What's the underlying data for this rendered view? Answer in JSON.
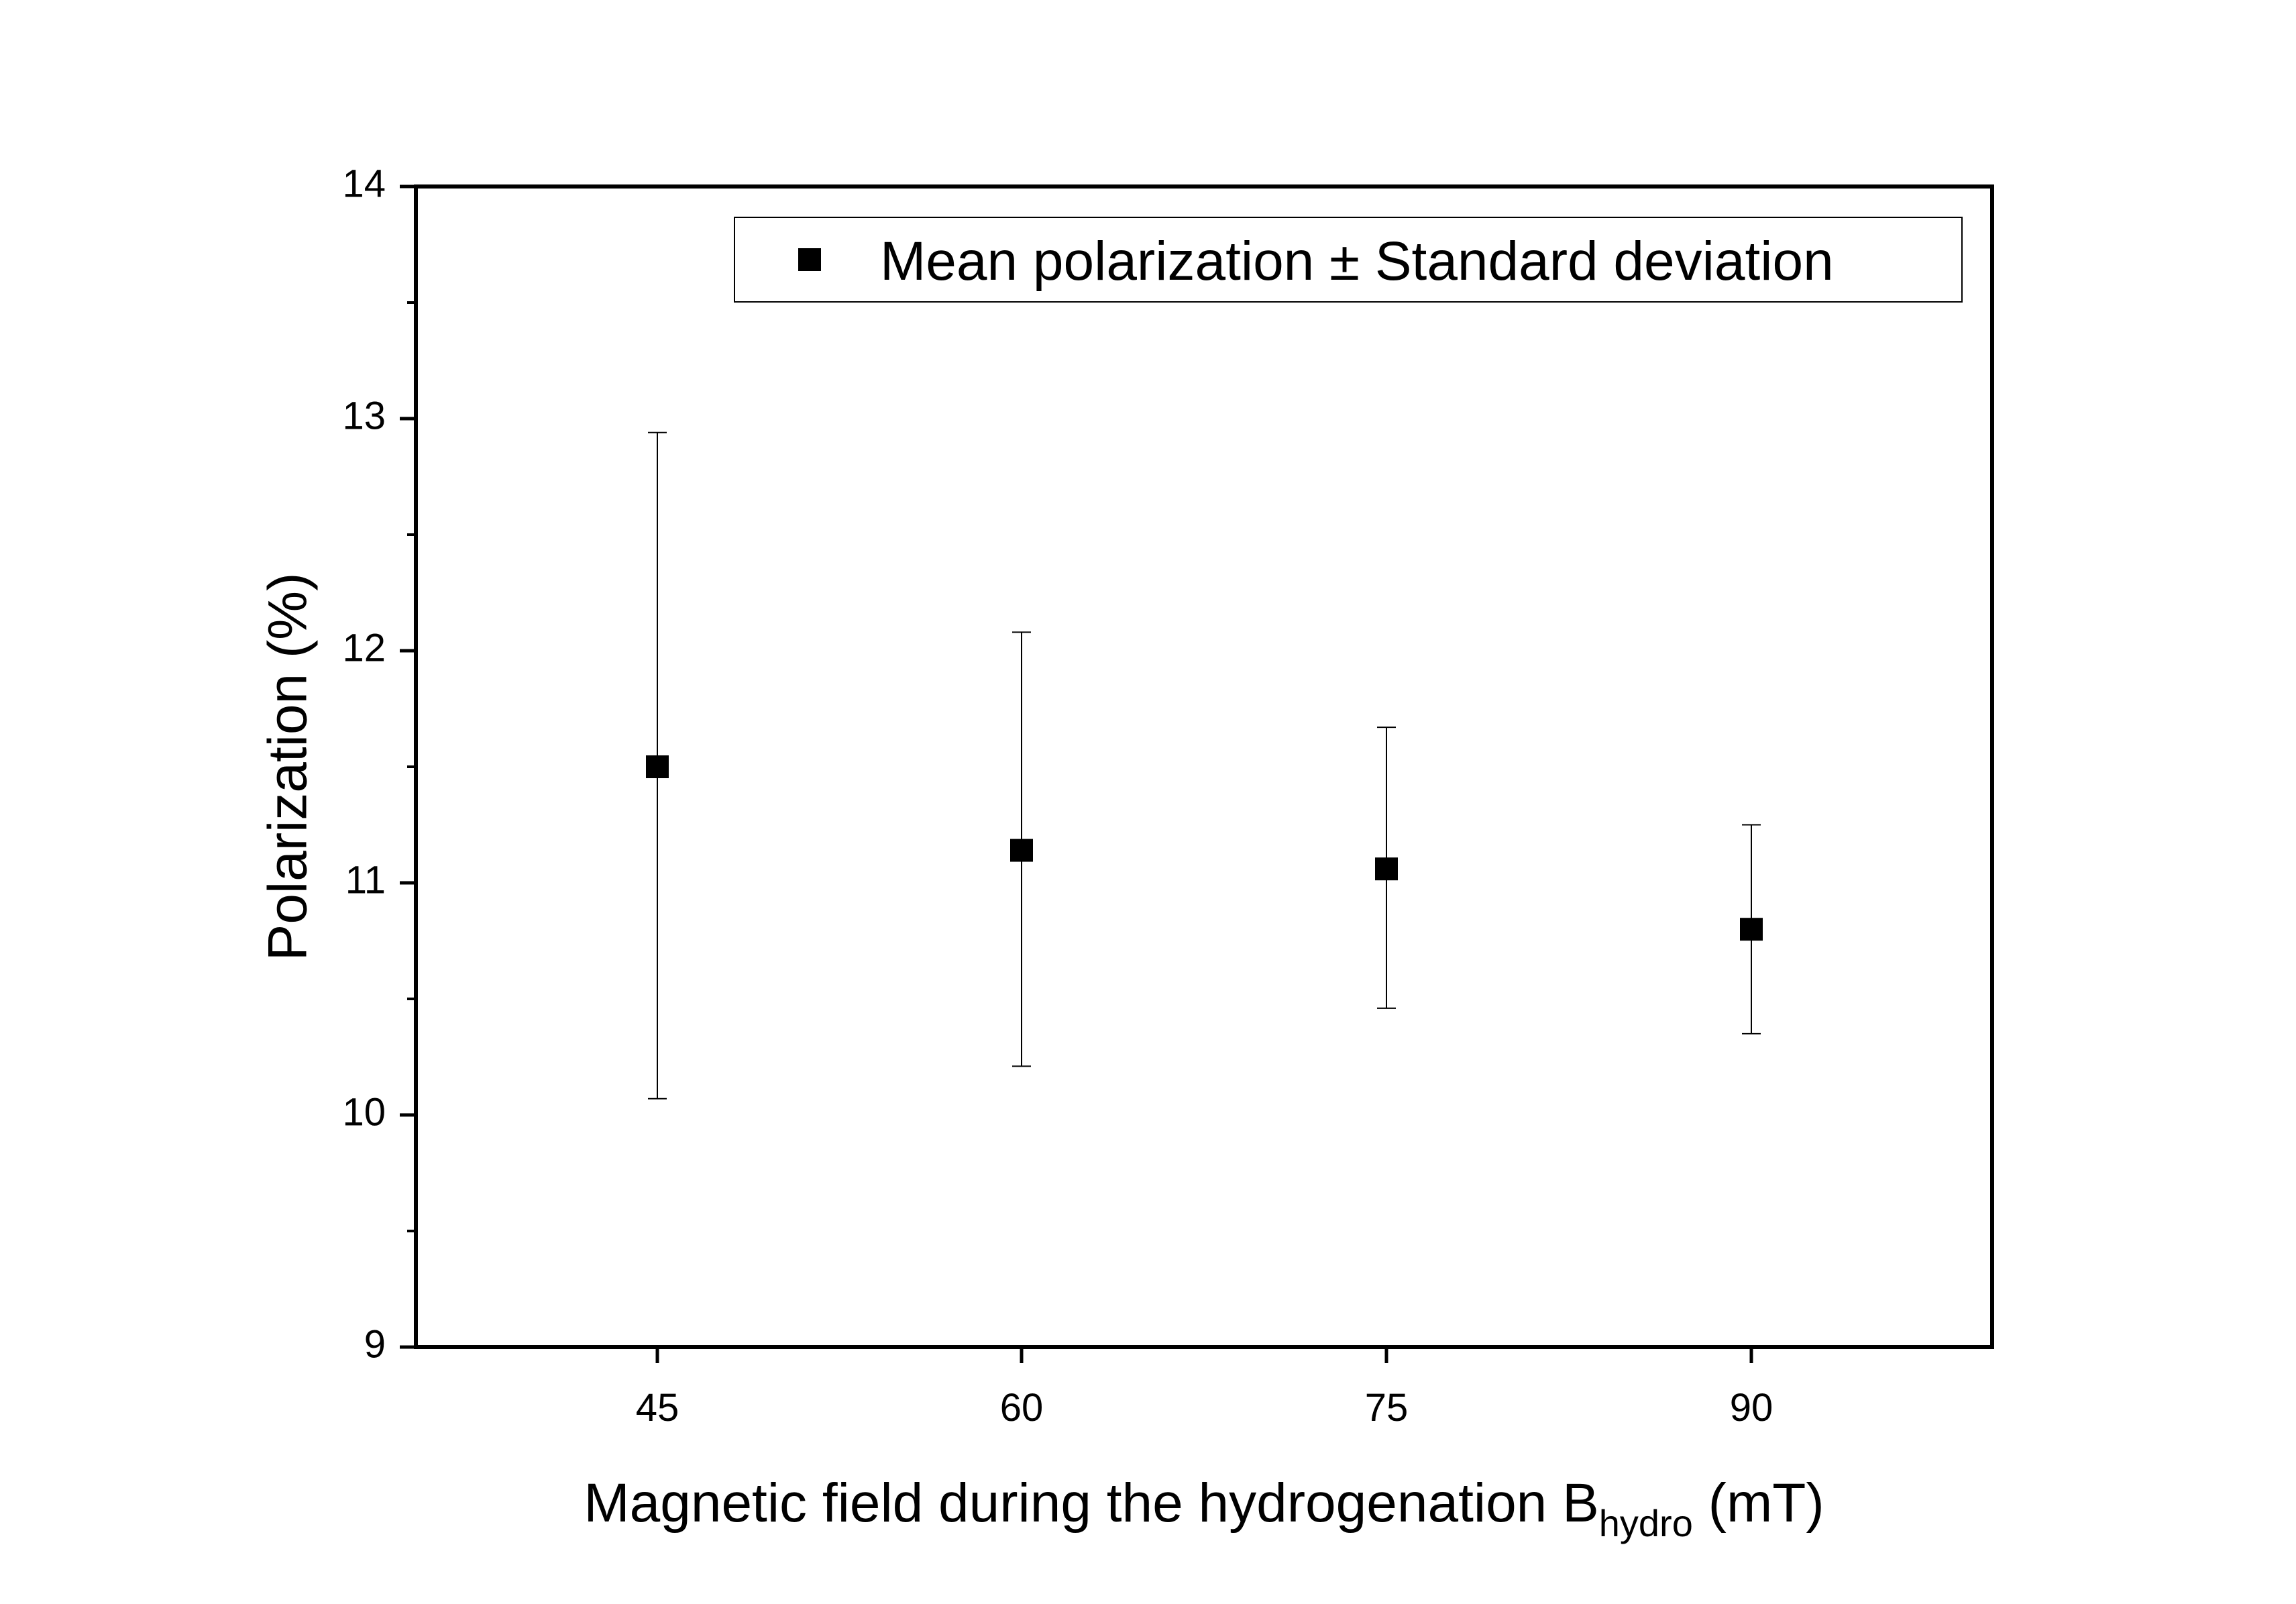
{
  "chart_data": {
    "type": "scatter",
    "title": "",
    "xlabel": "Magnetic field during the hydrogenation B",
    "xlabel_subscript": "hydro",
    "xlabel_suffix": " (mT)",
    "ylabel": "Polarization (%)",
    "x_categories": [
      "45",
      "60",
      "75",
      "90"
    ],
    "x": [
      45,
      60,
      75,
      90
    ],
    "ylim": [
      9,
      14
    ],
    "y_ticks": [
      "9",
      "10",
      "11",
      "12",
      "13",
      "14"
    ],
    "legend": {
      "placement": "top-right",
      "label": "Mean polarization ± Standard deviation"
    },
    "series": [
      {
        "name": "Mean polarization ± Standard deviation",
        "marker": "square",
        "color": "#000000",
        "values": [
          11.5,
          11.14,
          11.06,
          10.8
        ],
        "error_low": [
          10.07,
          10.21,
          10.46,
          10.35
        ],
        "error_high": [
          12.94,
          12.08,
          11.67,
          11.25
        ]
      }
    ]
  }
}
